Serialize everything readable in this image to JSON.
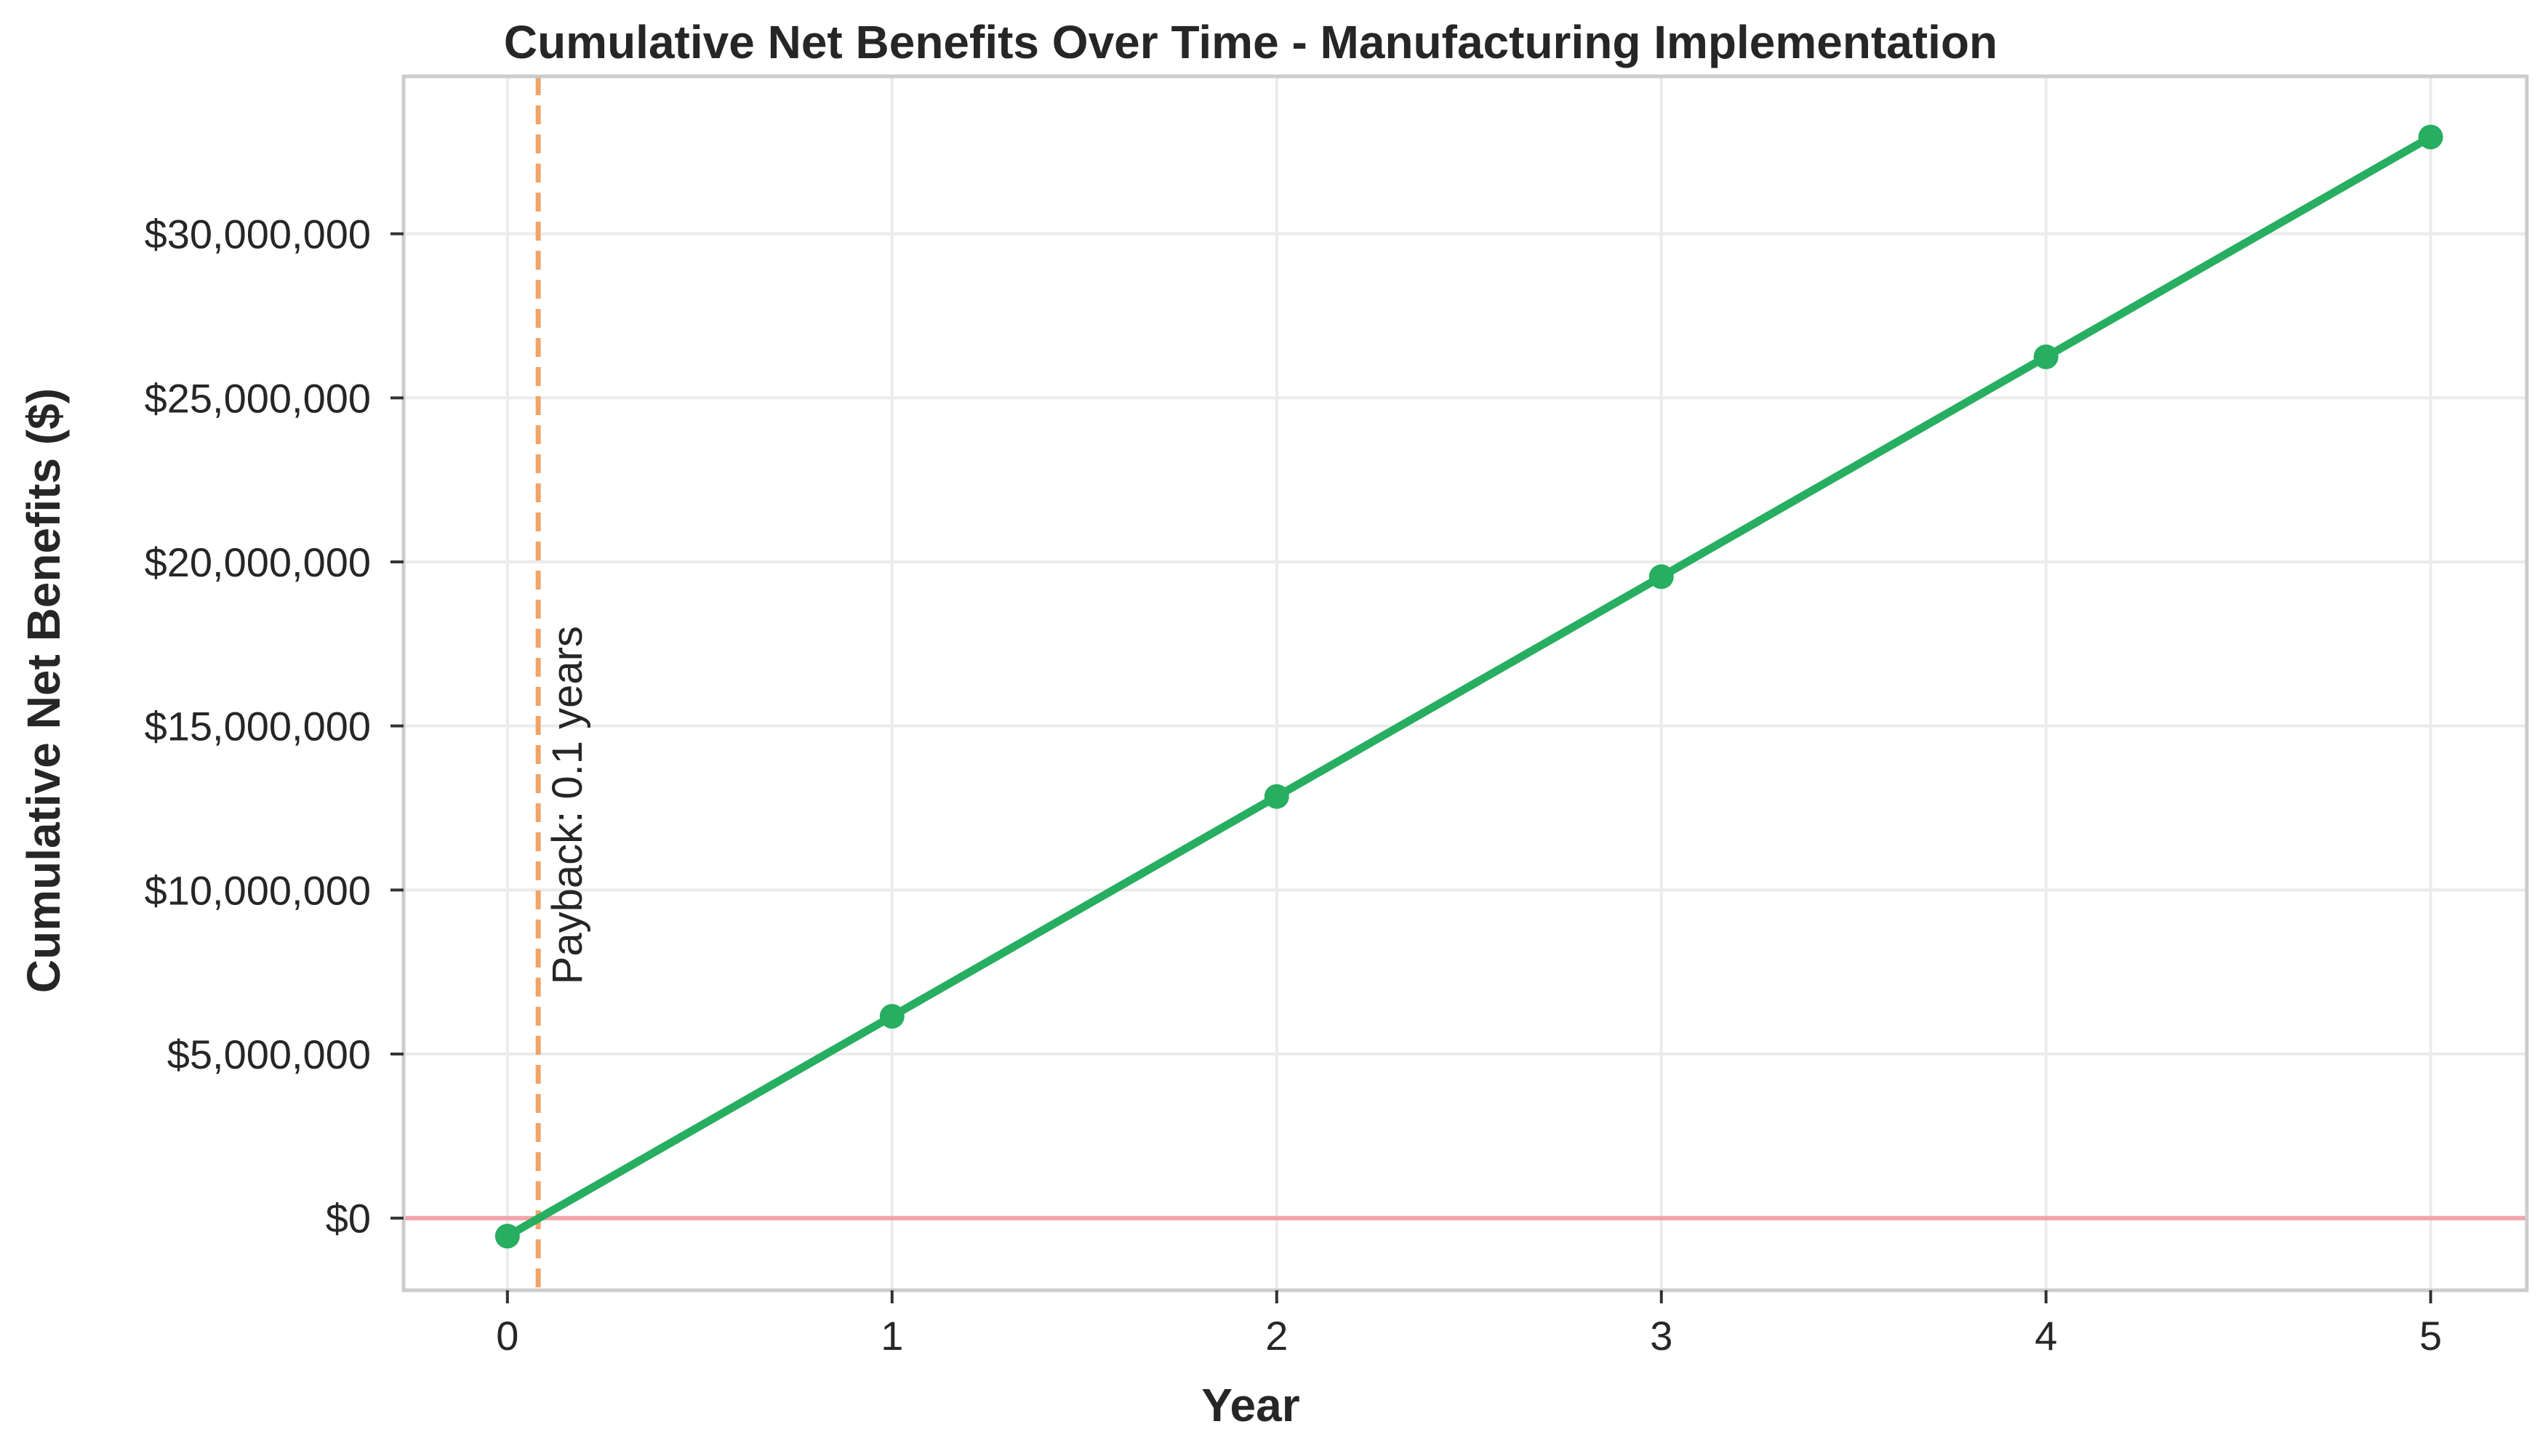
{
  "chart_data": {
    "type": "line",
    "title": "Cumulative Net Benefits Over Time - Manufacturing Implementation",
    "xlabel": "Year",
    "ylabel": "Cumulative Net Benefits ($)",
    "x": [
      0,
      1,
      2,
      3,
      4,
      5
    ],
    "series": [
      {
        "values": [
          -550000,
          6150000,
          12850000,
          19550000,
          26250000,
          32950000
        ]
      }
    ],
    "xlim": [
      -0.27,
      5.25
    ],
    "ylim": [
      -2200000,
      34800000
    ],
    "x_ticks": [
      0,
      1,
      2,
      3,
      4,
      5
    ],
    "x_tick_labels": [
      "0",
      "1",
      "2",
      "3",
      "4",
      "5"
    ],
    "y_ticks": [
      0,
      5000000,
      10000000,
      15000000,
      20000000,
      25000000,
      30000000
    ],
    "y_tick_labels": [
      "$0",
      "$5,000,000",
      "$10,000,000",
      "$15,000,000",
      "$20,000,000",
      "$25,000,000",
      "$30,000,000"
    ],
    "zero_line": 0,
    "payback": {
      "x": 0.08,
      "label": "Payback: 0.1 years"
    },
    "grid": true,
    "colors": {
      "line": "#27ae60",
      "zero_line": "#f1a5a8",
      "payback_line": "#f0a468",
      "grid": "#ebebeb",
      "frame": "#cccccc"
    }
  }
}
